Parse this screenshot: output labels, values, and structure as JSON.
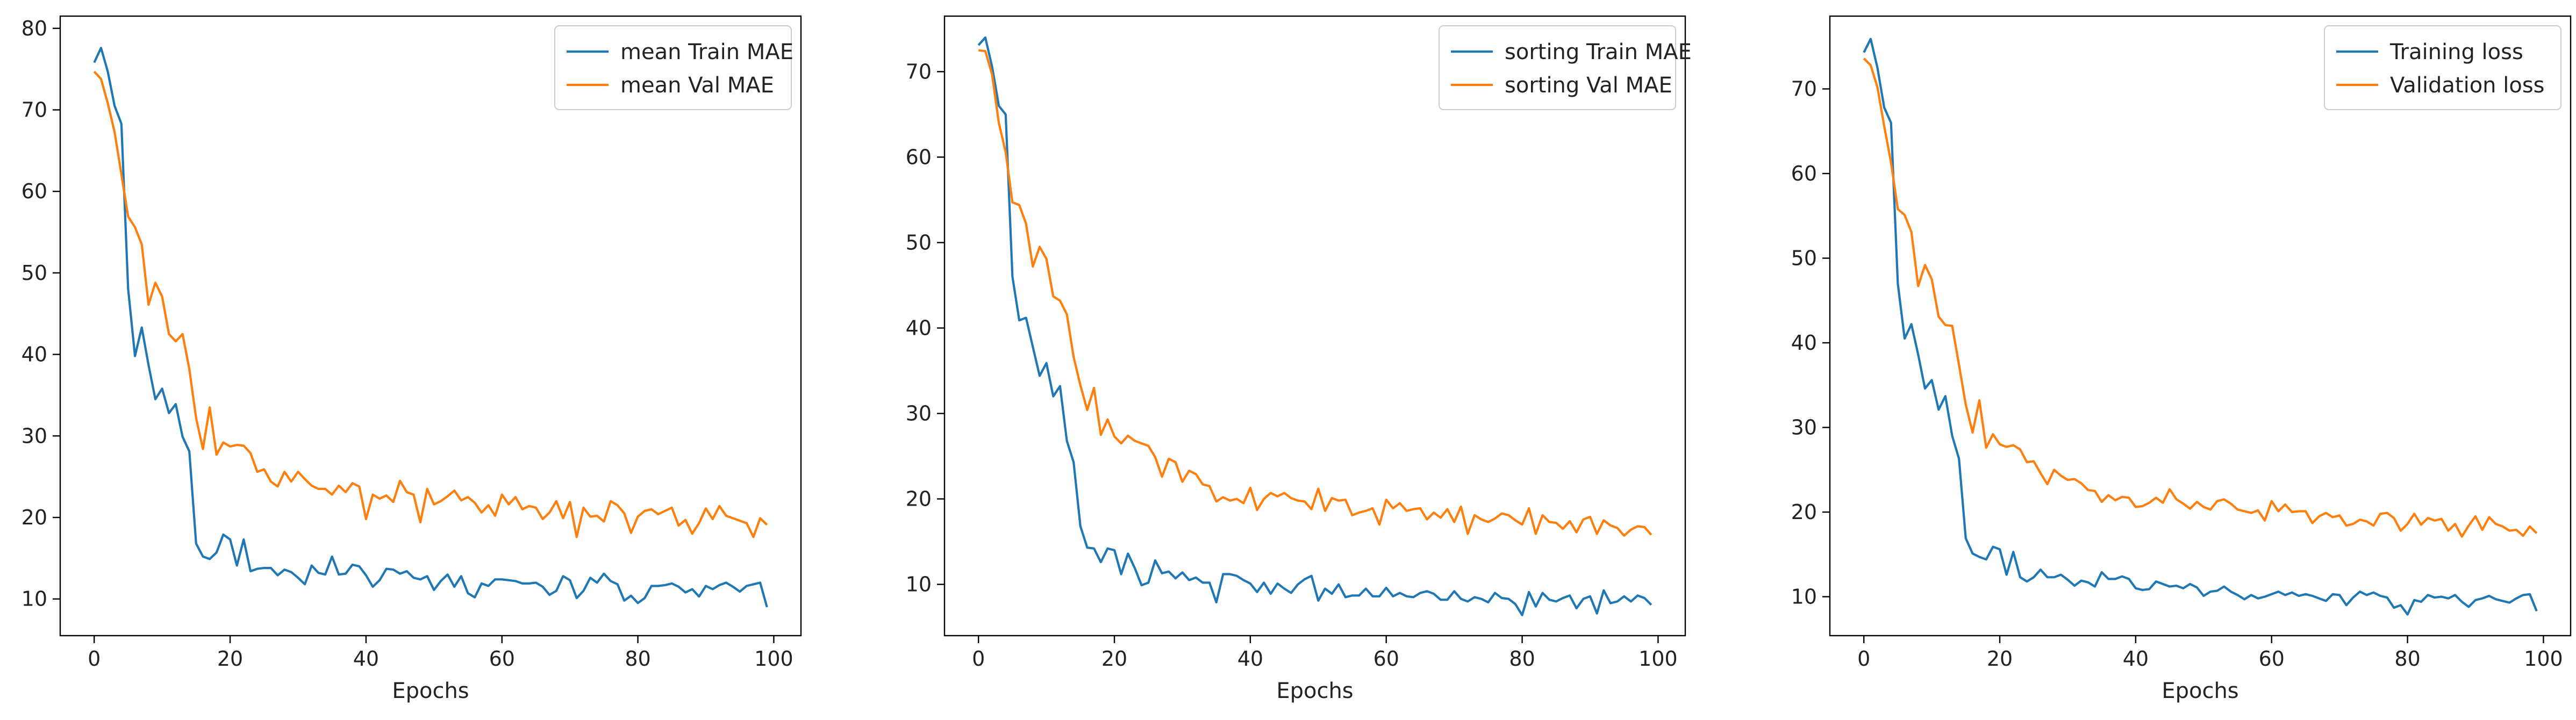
{
  "colors": {
    "train": "#1f77b4",
    "val": "#ff7f0e",
    "axis": "#000000",
    "legend_border": "#cccccc"
  },
  "chart_data": [
    {
      "type": "line",
      "xlabel": "Epochs",
      "ylabel": "",
      "xlim": [
        -5,
        104
      ],
      "ylim": [
        5.5,
        81.5
      ],
      "xticks": [
        0,
        20,
        40,
        60,
        80,
        100
      ],
      "yticks": [
        10,
        20,
        30,
        40,
        50,
        60,
        70,
        80
      ],
      "legend": "top-right",
      "grid": false,
      "series": [
        {
          "name": "mean Train MAE",
          "color": "#1f77b4",
          "values": [
            75.8,
            77.6,
            74.7,
            70.5,
            68.3,
            48.0,
            39.8,
            43.3,
            38.7,
            34.5,
            35.8,
            32.8,
            33.9,
            29.9,
            28.1,
            16.8,
            15.2,
            14.9,
            15.7,
            17.9,
            17.3,
            14.1,
            17.3,
            13.4,
            13.7,
            13.8,
            13.8,
            12.9,
            13.6,
            13.3,
            12.6,
            11.8,
            14.1,
            13.2,
            13.0,
            15.2,
            13.0,
            13.1,
            14.2,
            14.0,
            12.9,
            11.5,
            12.3,
            13.7,
            13.6,
            13.1,
            13.4,
            12.6,
            12.4,
            12.8,
            11.1,
            12.2,
            13.0,
            11.5,
            12.8,
            10.7,
            10.2,
            11.9,
            11.6,
            12.4,
            12.4,
            12.3,
            12.2,
            11.9,
            11.9,
            12.0,
            11.5,
            10.5,
            11.0,
            12.8,
            12.3,
            10.1,
            11.0,
            12.6,
            12.0,
            13.1,
            12.2,
            11.8,
            9.8,
            10.4,
            9.5,
            10.1,
            11.6,
            11.6,
            11.7,
            11.9,
            11.5,
            10.8,
            11.2,
            10.3,
            11.6,
            11.2,
            11.7,
            12.0,
            11.5,
            10.9,
            11.6,
            11.8,
            12.0,
            9.0
          ]
        },
        {
          "name": "mean Val MAE",
          "color": "#ff7f0e",
          "values": [
            74.7,
            73.8,
            70.8,
            67.3,
            62.1,
            56.9,
            55.6,
            53.5,
            46.1,
            48.8,
            47.1,
            42.5,
            41.6,
            42.5,
            38.2,
            32.2,
            28.4,
            33.5,
            27.7,
            29.2,
            28.7,
            28.9,
            28.8,
            27.9,
            25.6,
            25.9,
            24.4,
            23.8,
            25.6,
            24.4,
            25.6,
            24.7,
            23.9,
            23.5,
            23.5,
            22.8,
            23.9,
            23.1,
            24.2,
            23.8,
            19.8,
            22.8,
            22.3,
            22.7,
            21.9,
            24.5,
            23.1,
            22.8,
            19.4,
            23.5,
            21.6,
            22.0,
            22.6,
            23.3,
            22.1,
            22.5,
            21.8,
            20.6,
            21.5,
            20.2,
            22.8,
            21.6,
            22.5,
            21.0,
            21.4,
            21.2,
            19.8,
            20.6,
            22.0,
            19.9,
            21.9,
            17.6,
            21.2,
            20.1,
            20.2,
            19.5,
            22.0,
            21.5,
            20.5,
            18.1,
            20.1,
            20.8,
            21.0,
            20.4,
            20.8,
            21.2,
            19.0,
            19.7,
            18.0,
            19.3,
            21.1,
            19.8,
            21.4,
            20.2,
            19.9,
            19.6,
            19.3,
            17.6,
            19.9,
            19.1
          ]
        }
      ]
    },
    {
      "type": "line",
      "xlabel": "Epochs",
      "ylabel": "",
      "xlim": [
        -5,
        104
      ],
      "ylim": [
        4.0,
        76.5
      ],
      "xticks": [
        0,
        20,
        40,
        60,
        80,
        100
      ],
      "yticks": [
        10,
        20,
        30,
        40,
        50,
        60,
        70
      ],
      "legend": "top-right",
      "grid": false,
      "series": [
        {
          "name": "sorting Train MAE",
          "color": "#1f77b4",
          "values": [
            73.1,
            74.0,
            70.6,
            66.0,
            65.0,
            46.0,
            40.9,
            41.2,
            37.8,
            34.4,
            35.9,
            32.0,
            33.2,
            26.8,
            24.3,
            16.8,
            14.3,
            14.2,
            12.6,
            14.2,
            14.0,
            11.2,
            13.6,
            11.9,
            9.9,
            10.2,
            12.8,
            11.3,
            11.5,
            10.7,
            11.4,
            10.5,
            10.8,
            10.2,
            10.2,
            7.9,
            11.2,
            11.2,
            11.0,
            10.5,
            10.1,
            9.1,
            10.2,
            8.9,
            10.1,
            9.5,
            9.0,
            10.0,
            10.6,
            11.0,
            8.1,
            9.5,
            8.9,
            10.0,
            8.5,
            8.7,
            8.7,
            9.5,
            8.6,
            8.6,
            9.6,
            8.6,
            9.0,
            8.6,
            8.5,
            9.0,
            9.2,
            8.9,
            8.2,
            8.2,
            9.2,
            8.3,
            8.0,
            8.5,
            8.3,
            7.9,
            9.0,
            8.4,
            8.3,
            7.7,
            6.4,
            9.1,
            7.4,
            9.0,
            8.2,
            8.0,
            8.4,
            8.7,
            7.2,
            8.3,
            8.6,
            6.6,
            9.3,
            7.8,
            8.0,
            8.6,
            8.0,
            8.7,
            8.4,
            7.6
          ]
        },
        {
          "name": "sorting Val MAE",
          "color": "#ff7f0e",
          "values": [
            72.5,
            72.4,
            69.7,
            64.0,
            60.6,
            54.7,
            54.4,
            52.2,
            47.2,
            49.5,
            48.1,
            43.7,
            43.2,
            41.6,
            36.6,
            33.3,
            30.4,
            33.0,
            27.5,
            29.3,
            27.3,
            26.5,
            27.4,
            26.8,
            26.5,
            26.2,
            24.9,
            22.6,
            24.7,
            24.3,
            22.0,
            23.3,
            22.9,
            21.7,
            21.5,
            19.7,
            20.2,
            19.8,
            20.0,
            19.5,
            21.3,
            18.7,
            20.0,
            20.7,
            20.3,
            20.7,
            20.1,
            19.8,
            19.7,
            18.8,
            21.2,
            18.6,
            20.1,
            19.8,
            19.9,
            18.1,
            18.4,
            18.6,
            18.9,
            17.0,
            19.9,
            18.9,
            19.5,
            18.6,
            18.8,
            18.9,
            17.6,
            18.4,
            17.8,
            18.8,
            17.3,
            19.1,
            15.9,
            18.1,
            17.6,
            17.3,
            17.7,
            18.3,
            18.1,
            17.5,
            17.0,
            18.9,
            15.9,
            18.1,
            17.3,
            17.2,
            16.5,
            17.4,
            16.1,
            17.6,
            17.9,
            15.9,
            17.5,
            16.9,
            16.6,
            15.7,
            16.4,
            16.8,
            16.7,
            15.8
          ]
        }
      ]
    },
    {
      "type": "line",
      "xlabel": "Epochs",
      "ylabel": "",
      "xlim": [
        -5,
        104
      ],
      "ylim": [
        5.4,
        78.6
      ],
      "xticks": [
        0,
        20,
        40,
        60,
        80,
        100
      ],
      "yticks": [
        10,
        20,
        30,
        40,
        50,
        60,
        70
      ],
      "legend": "top-right",
      "grid": false,
      "series": [
        {
          "name": "Training loss",
          "color": "#1f77b4",
          "values": [
            74.3,
            75.9,
            72.5,
            67.8,
            66.0,
            47.0,
            40.5,
            42.2,
            38.6,
            34.6,
            35.6,
            32.1,
            33.7,
            29.0,
            26.3,
            16.9,
            15.1,
            14.7,
            14.4,
            15.9,
            15.6,
            12.6,
            15.3,
            12.3,
            11.8,
            12.3,
            13.2,
            12.3,
            12.3,
            12.6,
            12.0,
            11.3,
            11.9,
            11.7,
            11.2,
            12.9,
            12.1,
            12.1,
            12.4,
            12.1,
            11.0,
            10.8,
            10.9,
            11.8,
            11.5,
            11.2,
            11.3,
            11.0,
            11.5,
            11.1,
            10.1,
            10.6,
            10.7,
            11.2,
            10.6,
            10.2,
            9.7,
            10.2,
            9.8,
            10.0,
            10.3,
            10.6,
            10.2,
            10.5,
            10.1,
            10.3,
            10.1,
            9.8,
            9.5,
            10.3,
            10.2,
            9.0,
            9.9,
            10.6,
            10.2,
            10.5,
            10.1,
            9.9,
            8.7,
            9.0,
            7.9,
            9.6,
            9.4,
            10.2,
            9.9,
            10.0,
            9.8,
            10.2,
            9.4,
            8.8,
            9.6,
            9.8,
            10.1,
            9.7,
            9.5,
            9.3,
            9.8,
            10.2,
            10.3,
            8.3
          ]
        },
        {
          "name": "Validation loss",
          "color": "#ff7f0e",
          "values": [
            73.6,
            72.8,
            70.2,
            65.6,
            61.3,
            55.8,
            55.1,
            53.1,
            46.7,
            49.2,
            47.5,
            43.1,
            42.1,
            42.0,
            37.4,
            32.7,
            29.4,
            33.2,
            27.6,
            29.2,
            28.0,
            27.7,
            27.9,
            27.4,
            25.9,
            26.0,
            24.6,
            23.3,
            25.0,
            24.3,
            23.8,
            23.9,
            23.4,
            22.6,
            22.5,
            21.2,
            22.0,
            21.4,
            21.8,
            21.7,
            20.6,
            20.7,
            21.1,
            21.7,
            21.1,
            22.7,
            21.5,
            21.0,
            20.4,
            21.2,
            20.6,
            20.3,
            21.3,
            21.5,
            21.0,
            20.3,
            20.1,
            19.9,
            20.2,
            19.0,
            21.3,
            20.1,
            20.9,
            20.0,
            20.1,
            20.1,
            18.7,
            19.5,
            19.9,
            19.4,
            19.6,
            18.4,
            18.6,
            19.1,
            18.9,
            18.4,
            19.8,
            19.9,
            19.3,
            17.8,
            18.6,
            19.8,
            18.5,
            19.3,
            19.0,
            19.2,
            17.8,
            18.6,
            17.1,
            18.4,
            19.5,
            17.9,
            19.4,
            18.6,
            18.3,
            17.8,
            17.9,
            17.2,
            18.3,
            17.5
          ]
        }
      ]
    }
  ]
}
